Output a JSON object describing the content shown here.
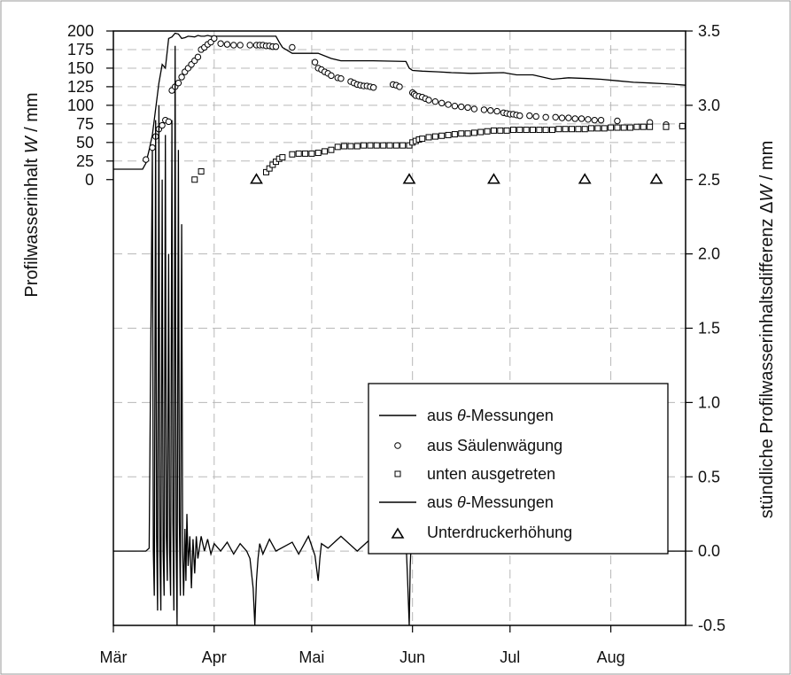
{
  "chart_data": {
    "type": "line",
    "x_tick_labels": [
      "Mär",
      "Apr",
      "Mai",
      "Jun",
      "Jul",
      "Aug"
    ],
    "x_tick_days": [
      0,
      31,
      61,
      92,
      122,
      153
    ],
    "xlim_days": [
      0,
      176
    ],
    "grid": true,
    "legend_position": "center-right",
    "y_left": {
      "label_prefix": "Profilwasserinhalt ",
      "label_var": "W",
      "label_suffix": " / mm",
      "lim": [
        -0.5,
        3.5
      ],
      "tick_values": [
        0,
        25,
        50,
        75,
        100,
        125,
        150,
        175,
        200
      ],
      "tick_labels": [
        "0",
        "25",
        "50",
        "75",
        "100",
        "125",
        "150",
        "175",
        "200"
      ]
    },
    "y_right": {
      "label_prefix": "stündliche Profilwasserinhaltsdifferenz Δ",
      "label_var": "W",
      "label_suffix": " / mm",
      "lim": [
        -0.5,
        3.5
      ],
      "tick_values": [
        -0.5,
        0.0,
        0.5,
        1.0,
        1.5,
        2.0,
        2.5,
        3.0,
        3.5
      ],
      "tick_labels": [
        "-0.5",
        "0.0",
        "0.5",
        "1.0",
        "1.5",
        "2.0",
        "2.5",
        "3.0",
        "3.5"
      ]
    },
    "legend": [
      {
        "type": "line",
        "prefix": "aus ",
        "var": "θ",
        "suffix": "-Messungen"
      },
      {
        "type": "circle",
        "label": "aus Säulenwägung"
      },
      {
        "type": "square",
        "label": "unten ausgetreten"
      },
      {
        "type": "line",
        "prefix": "aus ",
        "var": "θ",
        "suffix": "-Messungen"
      },
      {
        "type": "triangle",
        "label": "Unterdruckerhöhung"
      }
    ],
    "series": [
      {
        "type": "line",
        "axis": "left",
        "x_days": [
          0,
          5,
          9,
          10,
          11,
          12,
          13,
          14,
          15,
          16,
          17,
          18,
          19,
          20,
          21,
          22,
          23,
          25,
          26,
          27,
          28,
          29,
          30,
          33,
          35,
          40,
          45,
          50,
          51,
          52,
          55,
          60,
          63,
          67,
          70,
          80,
          90,
          91,
          92,
          95,
          100,
          104,
          110,
          120,
          124,
          129,
          135,
          140,
          146,
          150,
          155,
          160,
          165,
          170,
          176
        ],
        "values": [
          14,
          14,
          14,
          22,
          40,
          60,
          95,
          130,
          155,
          150,
          190,
          192,
          197,
          196,
          190,
          191,
          193,
          192,
          194,
          193,
          193,
          194,
          193,
          193,
          193,
          193,
          193,
          193,
          185,
          178,
          170,
          170,
          170,
          163,
          160,
          160,
          159,
          150,
          147,
          146,
          145,
          144,
          143,
          144,
          141,
          141,
          135,
          137,
          136,
          135,
          133,
          131,
          130,
          129,
          127
        ]
      },
      {
        "type": "scatter",
        "marker": "circle",
        "axis": "left",
        "x_days": [
          10,
          12,
          13,
          14,
          15,
          16,
          17,
          18,
          19,
          20,
          21,
          22,
          23,
          24,
          25,
          26,
          27,
          28,
          29,
          30,
          31,
          33,
          35,
          37,
          39,
          42,
          44,
          45,
          46,
          47,
          48,
          49,
          50,
          55,
          62,
          63,
          64,
          65,
          66,
          67,
          69,
          70,
          73,
          74,
          75,
          76,
          77,
          78,
          79,
          80,
          86,
          87,
          88,
          92,
          92.5,
          93,
          94,
          95,
          96,
          97,
          99,
          101,
          103,
          105,
          107,
          109,
          111,
          114,
          116,
          118,
          120,
          121,
          122,
          123,
          124,
          125,
          128,
          130,
          133,
          136,
          138,
          140,
          142,
          144,
          146,
          148,
          150,
          155,
          165,
          170,
          175
        ],
        "values": [
          27,
          43,
          58,
          68,
          73,
          80,
          78,
          120,
          125,
          130,
          138,
          145,
          150,
          155,
          160,
          165,
          175,
          178,
          182,
          185,
          190,
          183,
          182,
          181,
          181,
          181,
          181,
          181,
          181,
          180,
          180,
          179,
          179,
          178,
          158,
          150,
          148,
          145,
          143,
          140,
          137,
          136,
          132,
          130,
          128,
          127,
          126,
          126,
          125,
          124,
          128,
          127,
          125,
          117,
          115,
          113,
          112,
          111,
          109,
          107,
          105,
          103,
          101,
          99,
          98,
          97,
          95,
          94,
          93,
          92,
          90,
          89,
          88,
          88,
          87,
          86,
          86,
          85,
          84,
          84,
          83,
          83,
          82,
          82,
          81,
          80,
          80,
          79,
          77,
          74,
          72
        ]
      },
      {
        "type": "scatter",
        "marker": "square",
        "axis": "left",
        "x_days": [
          25,
          27,
          47,
          48,
          49,
          50,
          51,
          52,
          55,
          57,
          59,
          61,
          63,
          65,
          67,
          69,
          71,
          73,
          75,
          77,
          79,
          81,
          83,
          85,
          87,
          89,
          91,
          92,
          93,
          94,
          95,
          97,
          99,
          101,
          103,
          105,
          107,
          109,
          111,
          113,
          115,
          117,
          119,
          121,
          123,
          125,
          127,
          129,
          131,
          133,
          135,
          137,
          139,
          141,
          143,
          145,
          147,
          149,
          151,
          153,
          155,
          157,
          159,
          161,
          163,
          165,
          170,
          175
        ],
        "values": [
          0,
          11,
          10,
          15,
          20,
          24,
          28,
          30,
          34,
          35,
          35,
          35,
          36,
          38,
          40,
          44,
          45,
          45,
          45,
          46,
          46,
          46,
          46,
          46,
          46,
          46,
          46,
          50,
          52,
          54,
          55,
          57,
          58,
          59,
          60,
          61,
          62,
          62,
          63,
          64,
          65,
          66,
          66,
          66,
          67,
          67,
          67,
          67,
          67,
          67,
          67,
          68,
          68,
          68,
          68,
          68,
          69,
          69,
          69,
          70,
          70,
          70,
          70,
          71,
          71,
          71,
          71,
          72
        ]
      },
      {
        "type": "scatter",
        "marker": "triangle",
        "axis": "right",
        "x_days": [
          44,
          91,
          117,
          145,
          167
        ],
        "values": [
          2.5,
          2.5,
          2.5,
          2.5,
          2.5
        ]
      },
      {
        "type": "line",
        "axis": "right",
        "x_days": [
          0,
          5,
          10,
          11,
          12,
          12.3,
          12.6,
          13,
          13.3,
          13.6,
          14,
          14.3,
          14.6,
          15,
          15.3,
          15.6,
          16,
          16.3,
          16.6,
          17,
          17.3,
          17.6,
          18,
          18.3,
          18.6,
          19,
          19.3,
          19.6,
          20,
          20.3,
          20.6,
          21,
          21.3,
          21.6,
          22,
          22.3,
          22.6,
          23,
          23.5,
          24,
          24.5,
          25,
          25.5,
          26,
          27,
          28,
          29,
          30,
          31,
          33,
          35,
          37,
          39,
          41,
          42,
          43,
          43.5,
          44,
          44.5,
          45,
          46,
          48,
          50,
          55,
          57,
          60,
          62,
          63,
          63.5,
          64,
          66,
          70,
          75,
          80,
          85,
          90,
          90.5,
          91,
          91.3,
          91.6,
          92,
          95,
          100,
          105,
          110,
          115,
          120,
          125,
          130,
          135,
          140,
          145,
          150,
          155,
          160,
          165,
          170,
          176
        ],
        "values": [
          0,
          0,
          0,
          0.02,
          2.7,
          0.0,
          -0.3,
          2.9,
          0.1,
          -0.4,
          3.0,
          0.0,
          -0.4,
          2.5,
          0.0,
          -0.3,
          2.8,
          0.1,
          -0.2,
          2.0,
          0.0,
          -0.3,
          2.9,
          0.2,
          -0.4,
          3.4,
          0.1,
          -0.5,
          2.7,
          0.2,
          -0.3,
          2.2,
          0.0,
          -0.3,
          0.15,
          -0.2,
          0.25,
          -0.1,
          0.1,
          -0.25,
          0.08,
          -0.15,
          0.1,
          -0.05,
          0.1,
          0,
          0.08,
          -0.02,
          0.05,
          0,
          0.06,
          -0.02,
          0.05,
          0,
          -0.05,
          -0.25,
          -0.5,
          -0.2,
          -0.05,
          0.05,
          -0.02,
          0.08,
          0,
          0.06,
          -0.02,
          0.1,
          -0.03,
          -0.2,
          -0.05,
          0.05,
          0.02,
          0.1,
          0,
          0.1,
          0,
          0.08,
          -0.2,
          -0.5,
          -0.1,
          0.05,
          0,
          0.1,
          0,
          0.1,
          0,
          0.1,
          0,
          0.12,
          0,
          0.1,
          0,
          0.12,
          0,
          0.1,
          0.02,
          0.1,
          0,
          0
        ]
      }
    ]
  }
}
